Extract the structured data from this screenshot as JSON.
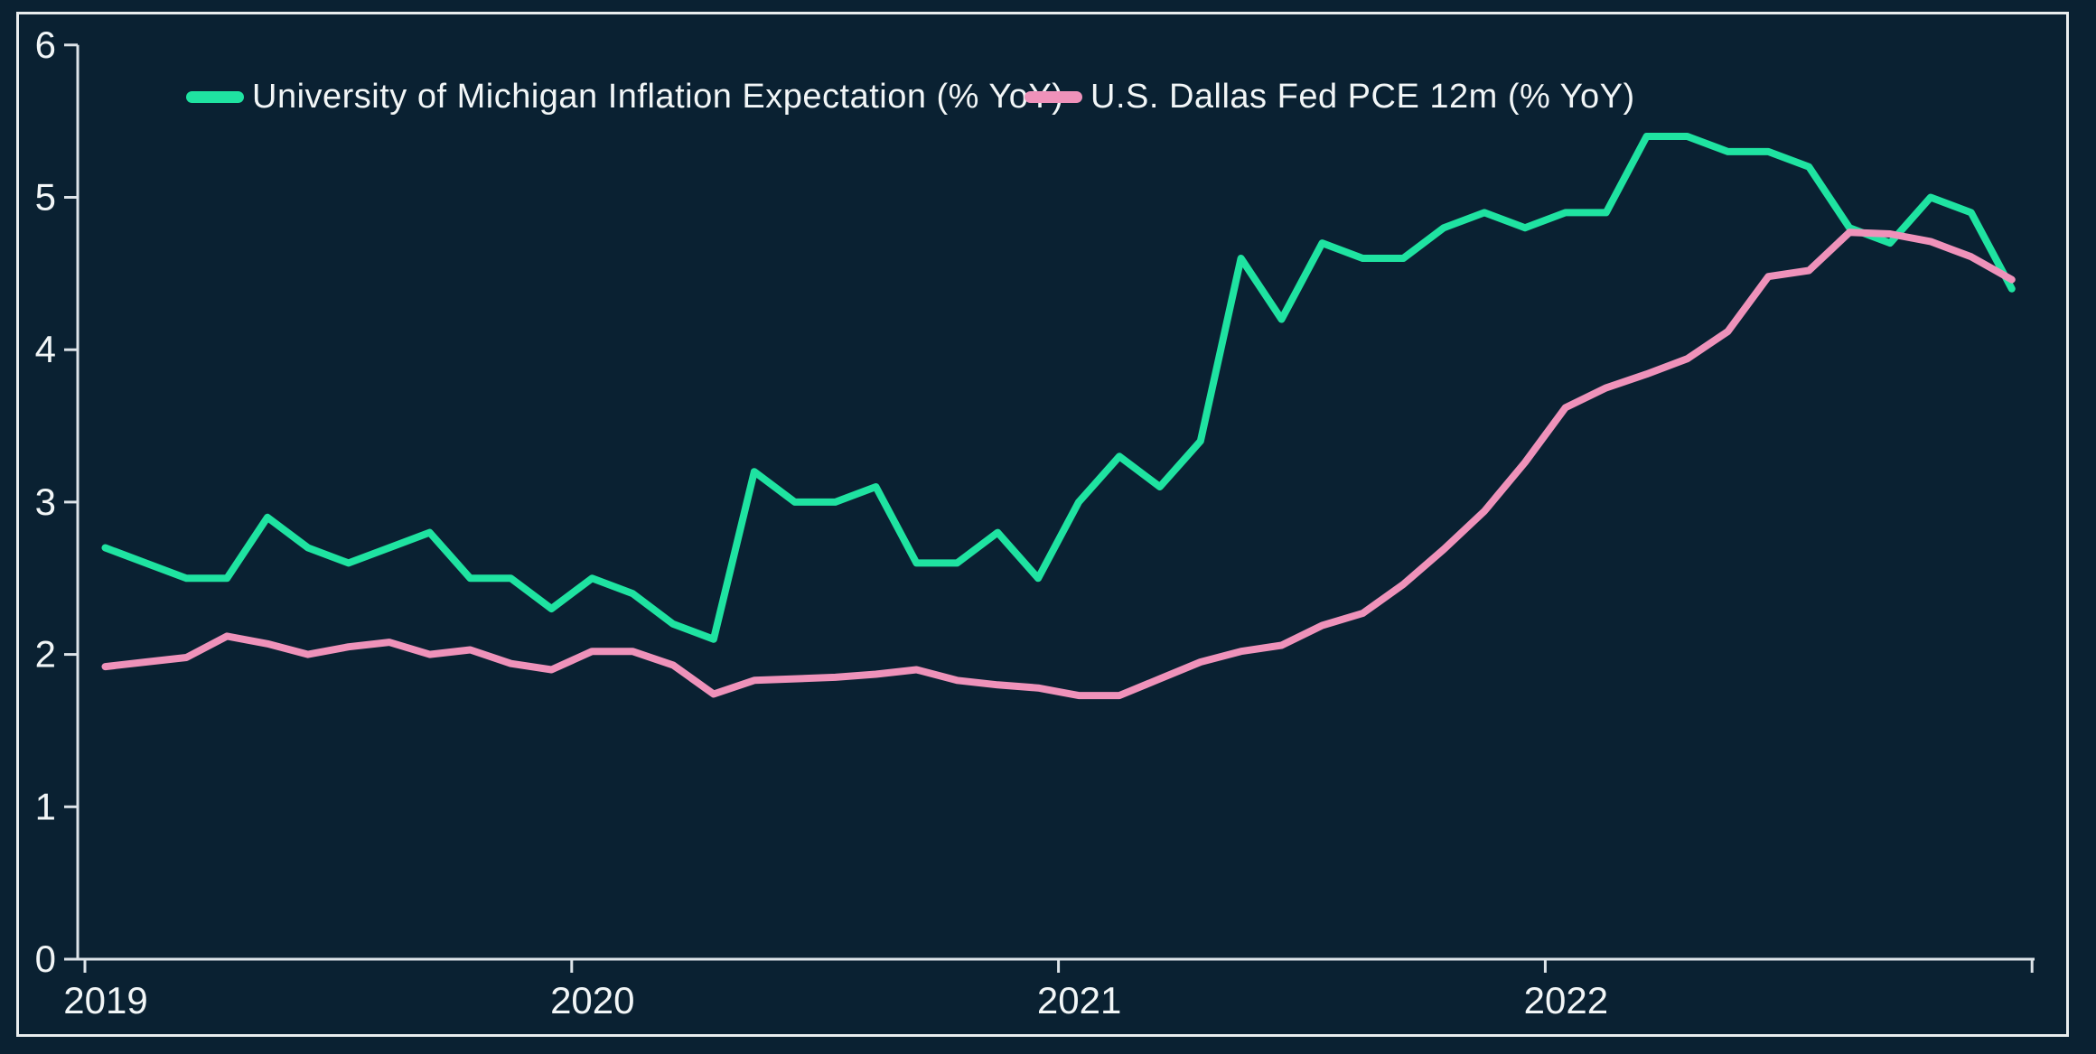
{
  "chart_data": {
    "type": "line",
    "title": "",
    "x_months": [
      "2019-01",
      "2019-02",
      "2019-03",
      "2019-04",
      "2019-05",
      "2019-06",
      "2019-07",
      "2019-08",
      "2019-09",
      "2019-10",
      "2019-11",
      "2019-12",
      "2020-01",
      "2020-02",
      "2020-03",
      "2020-04",
      "2020-05",
      "2020-06",
      "2020-07",
      "2020-08",
      "2020-09",
      "2020-10",
      "2020-11",
      "2020-12",
      "2021-01",
      "2021-02",
      "2021-03",
      "2021-04",
      "2021-05",
      "2021-06",
      "2021-07",
      "2021-08",
      "2021-09",
      "2021-10",
      "2021-11",
      "2021-12",
      "2022-01",
      "2022-02",
      "2022-03",
      "2022-04",
      "2022-05",
      "2022-06",
      "2022-07",
      "2022-08",
      "2022-09",
      "2022-10",
      "2022-11",
      "2022-12"
    ],
    "x_tick_labels": [
      "2019",
      "2020",
      "2021",
      "2022"
    ],
    "yticks": [
      "0",
      "1",
      "2",
      "3",
      "4",
      "5",
      "6"
    ],
    "ylim": [
      0,
      6
    ],
    "grid": false,
    "legend_position": "top",
    "background_color": "#0a2132",
    "axis_color": "#dde4e9",
    "text_color": "#f2f6f7",
    "series": [
      {
        "name": "University of Michigan Inflation Expectation (% YoY)",
        "color": "#1fe3a1",
        "values": [
          2.7,
          2.6,
          2.5,
          2.5,
          2.9,
          2.7,
          2.6,
          2.7,
          2.8,
          2.5,
          2.5,
          2.3,
          2.5,
          2.4,
          2.2,
          2.1,
          3.2,
          3.0,
          3.0,
          3.1,
          2.6,
          2.6,
          2.8,
          2.5,
          3.0,
          3.3,
          3.1,
          3.4,
          4.6,
          4.2,
          4.7,
          4.6,
          4.6,
          4.8,
          4.9,
          4.8,
          4.9,
          4.9,
          5.4,
          5.4,
          5.3,
          5.3,
          5.2,
          4.8,
          4.7,
          5.0,
          4.9,
          4.4
        ]
      },
      {
        "name": "U.S. Dallas Fed PCE 12m (% YoY)",
        "color": "#ef92ba",
        "values": [
          1.92,
          1.95,
          1.98,
          2.12,
          2.07,
          2.0,
          2.05,
          2.08,
          2.0,
          2.03,
          1.94,
          1.9,
          2.02,
          2.02,
          1.93,
          1.74,
          1.83,
          1.84,
          1.85,
          1.87,
          1.9,
          1.83,
          1.8,
          1.78,
          1.73,
          1.73,
          1.84,
          1.95,
          2.02,
          2.06,
          2.19,
          2.27,
          2.46,
          2.69,
          2.94,
          3.26,
          3.62,
          3.75,
          3.84,
          3.94,
          4.12,
          4.48,
          4.52,
          4.77,
          4.76,
          4.71,
          4.61,
          4.46
        ]
      }
    ]
  }
}
